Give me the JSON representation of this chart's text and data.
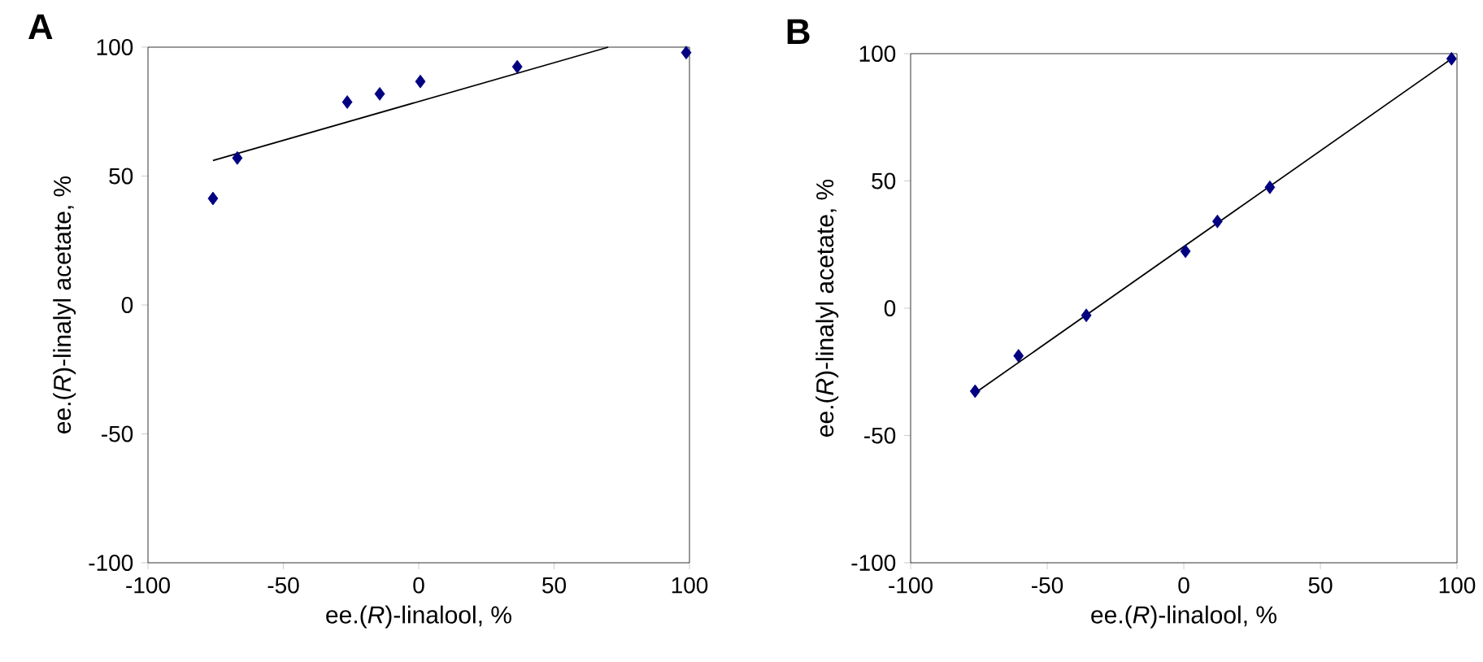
{
  "chart_data": [
    {
      "type": "scatter",
      "title": "A",
      "xlabel": "ee.(*R*)-linalool, %",
      "ylabel": "ee.(*R*)-linalyl acetate, %",
      "xlim": [
        -100,
        100
      ],
      "ylim": [
        -100,
        100
      ],
      "xticks": [
        -100,
        -50,
        0,
        50,
        100
      ],
      "yticks": [
        -100,
        -50,
        0,
        50,
        100
      ],
      "marker": "diamond",
      "series": [
        {
          "color": "#000080",
          "x": [
            -76,
            -67,
            -26.4,
            -14.4,
            0.6,
            36.4,
            98.8
          ],
          "values": [
            41.3,
            57,
            78.7,
            81.9,
            86.7,
            92.4,
            97.9
          ]
        },
        {
          "type": "line",
          "marker": "none",
          "color": "#000000",
          "x": [
            -76,
            70
          ],
          "values": [
            56,
            100
          ]
        }
      ]
    },
    {
      "type": "scatter",
      "title": "B",
      "xlabel": "ee.(*R*)-linalool, %",
      "ylabel": "ee.(*R*)-linalyl acetate, %",
      "xlim": [
        -100,
        100
      ],
      "ylim": [
        -100,
        100
      ],
      "xticks": [
        -100,
        -50,
        0,
        50,
        100
      ],
      "yticks": [
        -100,
        -50,
        0,
        50,
        100
      ],
      "marker": "diamond",
      "series": [
        {
          "color": "#000080",
          "x": [
            -76.4,
            -60.5,
            -35.7,
            0.6,
            12.3,
            31.5,
            98
          ],
          "values": [
            -32.6,
            -18.7,
            -2.8,
            22.4,
            34.1,
            47.5,
            98
          ]
        },
        {
          "type": "line",
          "marker": "none",
          "color": "#000000",
          "x": [
            -76,
            98
          ],
          "values": [
            -33,
            98
          ]
        }
      ]
    }
  ]
}
